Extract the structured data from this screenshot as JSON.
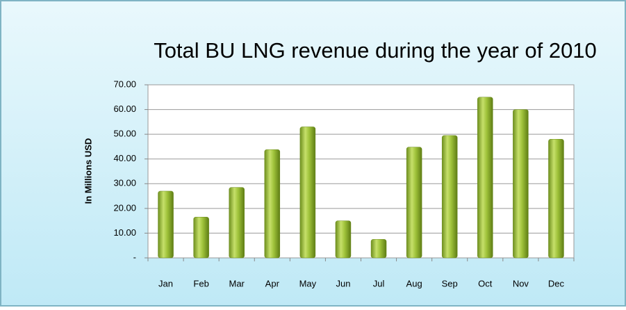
{
  "chart_data": {
    "type": "bar",
    "title": "Total BU LNG revenue during the year of 2010",
    "y_label": "In Millions USD",
    "categories": [
      "Jan",
      "Feb",
      "Mar",
      "Apr",
      "May",
      "Jun",
      "Jul",
      "Aug",
      "Sep",
      "Oct",
      "Nov",
      "Dec"
    ],
    "values": [
      27,
      16.5,
      28.5,
      43.8,
      53,
      15,
      7.5,
      44.8,
      49.5,
      65,
      60,
      48
    ],
    "color": "#8fb330",
    "ylim": [
      0,
      70
    ],
    "yticks": [
      {
        "value": 0,
        "label": "-"
      },
      {
        "value": 10,
        "label": "10.00"
      },
      {
        "value": 20,
        "label": "20.00"
      },
      {
        "value": 30,
        "label": "30.00"
      },
      {
        "value": 40,
        "label": "40.00"
      },
      {
        "value": 50,
        "label": "50.00"
      },
      {
        "value": 60,
        "label": "60.00"
      },
      {
        "value": 70,
        "label": "70.00"
      }
    ],
    "grid": true
  }
}
